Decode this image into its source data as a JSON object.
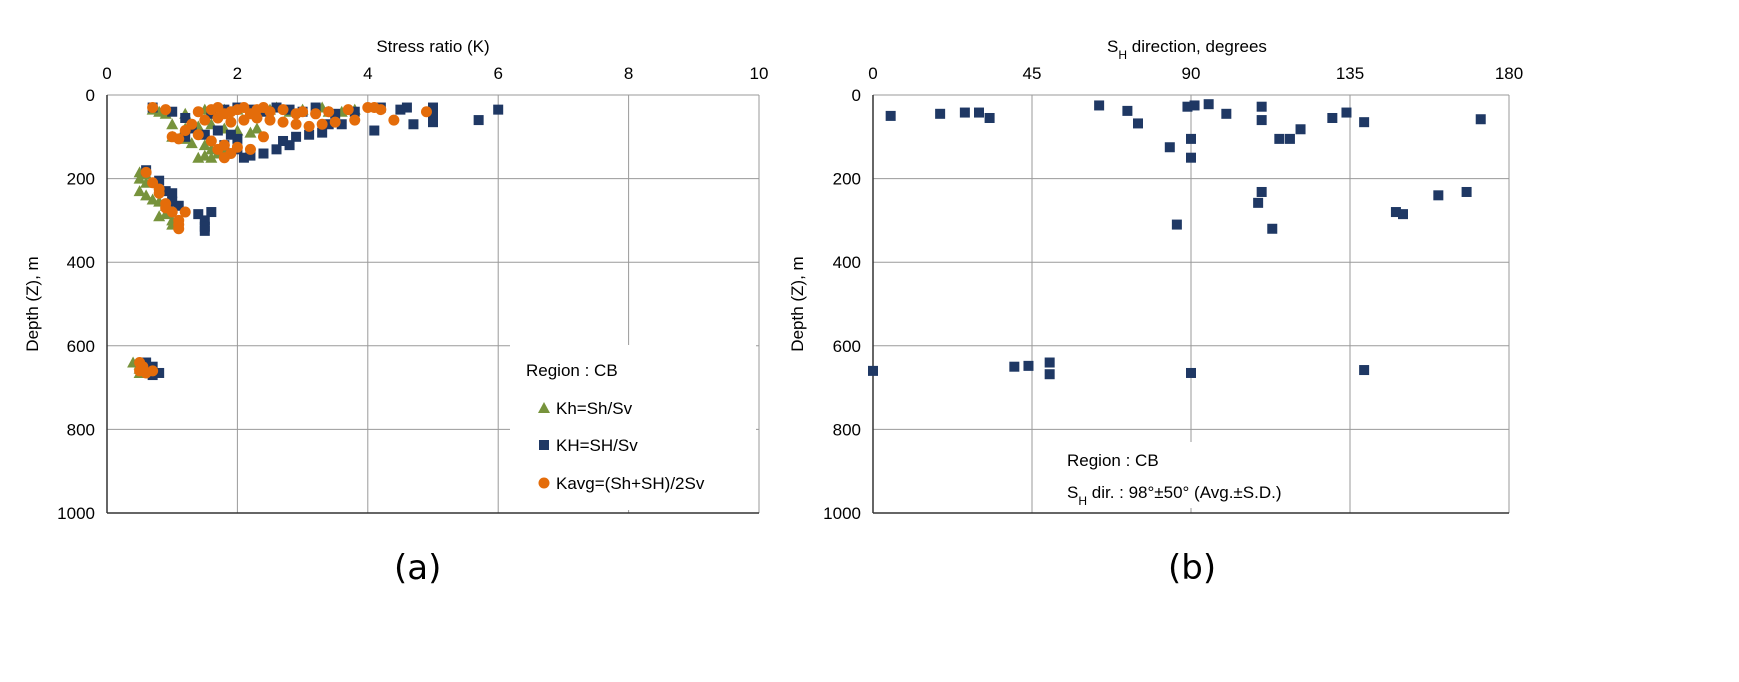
{
  "chart_data": [
    {
      "id": "a",
      "type": "scatter",
      "panel_label": "(a)",
      "title": "",
      "xlabel": "Stress ratio (K)",
      "ylabel": "Depth (Z), m",
      "xlim": [
        0,
        10
      ],
      "ylim": [
        0,
        1000
      ],
      "y_inverted": true,
      "x_ticks": [
        0,
        2,
        4,
        6,
        8,
        10
      ],
      "y_ticks": [
        0,
        200,
        400,
        600,
        800,
        1000
      ],
      "grid": true,
      "legend": {
        "placement": "bottom-right",
        "title": "Region : CB",
        "entries": [
          "Kh=Sh/Sv",
          "KH=SH/Sv",
          "Kavg=(Sh+SH)/2Sv"
        ]
      },
      "colors": {
        "Kh=Sh/Sv": "#77933c",
        "KH=SH/Sv": "#1f3864",
        "Kavg=(Sh+SH)/2Sv": "#e46c0a"
      },
      "series": [
        {
          "name": "Kh=Sh/Sv",
          "marker": "triangle",
          "points": [
            [
              0.7,
              35
            ],
            [
              0.8,
              40
            ],
            [
              0.9,
              45
            ],
            [
              1.2,
              45
            ],
            [
              1.5,
              35
            ],
            [
              1.6,
              40
            ],
            [
              1.8,
              35
            ],
            [
              2.0,
              35
            ],
            [
              2.2,
              40
            ],
            [
              2.5,
              35
            ],
            [
              2.6,
              30
            ],
            [
              2.8,
              40
            ],
            [
              3.0,
              35
            ],
            [
              3.3,
              30
            ],
            [
              3.4,
              40
            ],
            [
              3.6,
              40
            ],
            [
              3.8,
              35
            ],
            [
              1.0,
              70
            ],
            [
              1.2,
              80
            ],
            [
              1.4,
              75
            ],
            [
              1.6,
              70
            ],
            [
              1.8,
              80
            ],
            [
              2.0,
              85
            ],
            [
              2.2,
              90
            ],
            [
              2.3,
              80
            ],
            [
              1.0,
              100
            ],
            [
              1.2,
              105
            ],
            [
              1.3,
              115
            ],
            [
              1.5,
              120
            ],
            [
              1.6,
              130
            ],
            [
              1.7,
              140
            ],
            [
              1.5,
              145
            ],
            [
              1.4,
              150
            ],
            [
              1.8,
              135
            ],
            [
              1.6,
              150
            ],
            [
              0.5,
              185
            ],
            [
              0.6,
              190
            ],
            [
              0.5,
              200
            ],
            [
              0.6,
              210
            ],
            [
              0.5,
              230
            ],
            [
              0.6,
              240
            ],
            [
              0.7,
              250
            ],
            [
              0.8,
              255
            ],
            [
              0.9,
              265
            ],
            [
              0.9,
              285
            ],
            [
              0.8,
              290
            ],
            [
              1.0,
              300
            ],
            [
              1.0,
              310
            ],
            [
              0.4,
              640
            ],
            [
              0.5,
              645
            ],
            [
              0.5,
              655
            ],
            [
              0.6,
              660
            ],
            [
              0.5,
              665
            ]
          ]
        },
        {
          "name": "KH=SH/Sv",
          "marker": "square",
          "points": [
            [
              0.7,
              30
            ],
            [
              1.0,
              40
            ],
            [
              1.2,
              55
            ],
            [
              1.6,
              45
            ],
            [
              1.8,
              35
            ],
            [
              2.0,
              30
            ],
            [
              2.2,
              35
            ],
            [
              2.4,
              40
            ],
            [
              2.6,
              30
            ],
            [
              2.8,
              35
            ],
            [
              3.0,
              40
            ],
            [
              3.2,
              30
            ],
            [
              3.5,
              45
            ],
            [
              3.8,
              40
            ],
            [
              4.2,
              30
            ],
            [
              4.5,
              35
            ],
            [
              4.6,
              30
            ],
            [
              5.0,
              30
            ],
            [
              5.0,
              50
            ],
            [
              5.0,
              65
            ],
            [
              6.0,
              35
            ],
            [
              5.7,
              60
            ],
            [
              4.7,
              70
            ],
            [
              4.1,
              85
            ],
            [
              3.6,
              70
            ],
            [
              3.4,
              70
            ],
            [
              3.3,
              90
            ],
            [
              3.1,
              95
            ],
            [
              2.9,
              100
            ],
            [
              2.7,
              110
            ],
            [
              2.8,
              120
            ],
            [
              2.6,
              130
            ],
            [
              2.4,
              140
            ],
            [
              2.2,
              145
            ],
            [
              2.1,
              150
            ],
            [
              2.0,
              105
            ],
            [
              1.9,
              95
            ],
            [
              1.7,
              85
            ],
            [
              1.5,
              95
            ],
            [
              1.3,
              80
            ],
            [
              1.2,
              100
            ],
            [
              1.8,
              120
            ],
            [
              2.0,
              130
            ],
            [
              0.6,
              180
            ],
            [
              0.8,
              205
            ],
            [
              0.9,
              230
            ],
            [
              1.0,
              235
            ],
            [
              1.0,
              255
            ],
            [
              1.1,
              265
            ],
            [
              1.4,
              285
            ],
            [
              1.6,
              280
            ],
            [
              1.5,
              300
            ],
            [
              1.5,
              315
            ],
            [
              1.5,
              325
            ],
            [
              0.6,
              640
            ],
            [
              0.7,
              650
            ],
            [
              0.6,
              660
            ],
            [
              0.8,
              665
            ],
            [
              0.7,
              670
            ]
          ]
        },
        {
          "name": "Kavg=(Sh+SH)/2Sv",
          "marker": "circle",
          "points": [
            [
              0.7,
              30
            ],
            [
              0.9,
              35
            ],
            [
              1.4,
              40
            ],
            [
              1.6,
              35
            ],
            [
              1.7,
              30
            ],
            [
              1.8,
              45
            ],
            [
              1.9,
              40
            ],
            [
              2.0,
              35
            ],
            [
              2.1,
              30
            ],
            [
              2.2,
              45
            ],
            [
              2.3,
              35
            ],
            [
              2.4,
              30
            ],
            [
              2.5,
              40
            ],
            [
              2.7,
              35
            ],
            [
              2.9,
              45
            ],
            [
              3.0,
              40
            ],
            [
              3.2,
              45
            ],
            [
              3.4,
              40
            ],
            [
              3.7,
              35
            ],
            [
              4.0,
              30
            ],
            [
              4.1,
              30
            ],
            [
              4.2,
              35
            ],
            [
              4.9,
              40
            ],
            [
              4.4,
              60
            ],
            [
              3.8,
              60
            ],
            [
              3.5,
              65
            ],
            [
              3.3,
              70
            ],
            [
              3.1,
              75
            ],
            [
              2.9,
              70
            ],
            [
              2.7,
              65
            ],
            [
              2.5,
              60
            ],
            [
              2.3,
              55
            ],
            [
              2.1,
              60
            ],
            [
              1.9,
              65
            ],
            [
              1.7,
              55
            ],
            [
              1.5,
              60
            ],
            [
              1.3,
              70
            ],
            [
              1.2,
              85
            ],
            [
              1.4,
              95
            ],
            [
              1.0,
              100
            ],
            [
              1.1,
              105
            ],
            [
              1.6,
              110
            ],
            [
              1.8,
              120
            ],
            [
              2.0,
              125
            ],
            [
              1.7,
              130
            ],
            [
              2.2,
              130
            ],
            [
              1.9,
              140
            ],
            [
              1.8,
              150
            ],
            [
              2.4,
              100
            ],
            [
              0.6,
              185
            ],
            [
              0.7,
              210
            ],
            [
              0.8,
              225
            ],
            [
              0.8,
              235
            ],
            [
              0.9,
              260
            ],
            [
              0.9,
              270
            ],
            [
              1.0,
              280
            ],
            [
              1.2,
              280
            ],
            [
              1.1,
              300
            ],
            [
              1.1,
              310
            ],
            [
              1.1,
              320
            ],
            [
              0.5,
              640
            ],
            [
              0.55,
              650
            ],
            [
              0.5,
              660
            ],
            [
              0.6,
              665
            ],
            [
              0.7,
              660
            ]
          ]
        }
      ]
    },
    {
      "id": "b",
      "type": "scatter",
      "panel_label": "(b)",
      "title": "",
      "xlabel_main": "S",
      "xlabel_sub": "H",
      "xlabel_rest": " direction, degrees",
      "ylabel": "Depth (Z), m",
      "xlim": [
        0,
        180
      ],
      "ylim": [
        0,
        1000
      ],
      "y_inverted": true,
      "x_ticks": [
        0,
        45,
        90,
        135,
        180
      ],
      "y_ticks": [
        0,
        200,
        400,
        600,
        800,
        1000
      ],
      "grid": true,
      "annotation": {
        "region": "Region : CB",
        "dir_main": "S",
        "dir_sub": "H",
        "dir_rest": " dir.  : 98°±50° (Avg.±S.D.)"
      },
      "colors": {
        "S_H direction": "#1f3864"
      },
      "series": [
        {
          "name": "S_H direction",
          "marker": "square",
          "points": [
            [
              5,
              50
            ],
            [
              19,
              45
            ],
            [
              26,
              42
            ],
            [
              30,
              42
            ],
            [
              33,
              55
            ],
            [
              64,
              25
            ],
            [
              72,
              38
            ],
            [
              75,
              68
            ],
            [
              84,
              125
            ],
            [
              89,
              28
            ],
            [
              91,
              25
            ],
            [
              86,
              310
            ],
            [
              90,
              105
            ],
            [
              90,
              150
            ],
            [
              95,
              22
            ],
            [
              100,
              45
            ],
            [
              110,
              28
            ],
            [
              110,
              60
            ],
            [
              110,
              232
            ],
            [
              109,
              258
            ],
            [
              113,
              320
            ],
            [
              115,
              105
            ],
            [
              118,
              105
            ],
            [
              121,
              82
            ],
            [
              130,
              55
            ],
            [
              134,
              42
            ],
            [
              139,
              65
            ],
            [
              148,
              280
            ],
            [
              150,
              285
            ],
            [
              160,
              240
            ],
            [
              168,
              232
            ],
            [
              172,
              58
            ],
            [
              0,
              660
            ],
            [
              40,
              650
            ],
            [
              44,
              648
            ],
            [
              50,
              640
            ],
            [
              50,
              668
            ],
            [
              90,
              665
            ],
            [
              139,
              658
            ]
          ]
        }
      ]
    }
  ]
}
